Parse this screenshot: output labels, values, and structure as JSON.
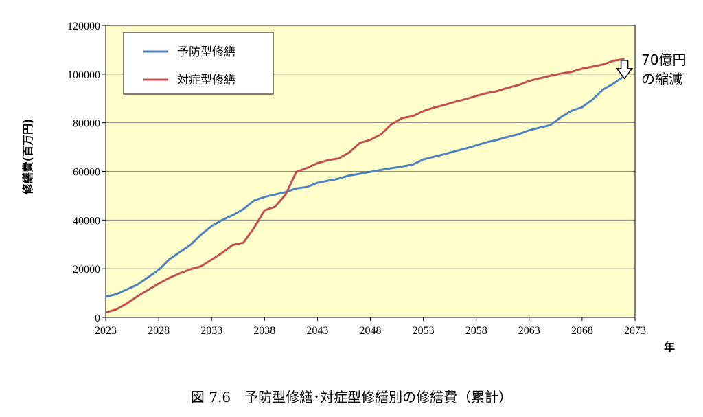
{
  "chart_data": {
    "type": "line",
    "caption": "図 7.6　予防型修繕･対症型修繕別の修繕費（累計）",
    "xlabel": "年",
    "ylabel": "修繕費(百万円)",
    "xlim": [
      2023,
      2073
    ],
    "ylim": [
      0,
      120000
    ],
    "x_ticks": [
      2023,
      2028,
      2033,
      2038,
      2043,
      2048,
      2053,
      2058,
      2063,
      2068,
      2073
    ],
    "y_ticks": [
      0,
      20000,
      40000,
      60000,
      80000,
      100000,
      120000
    ],
    "grid": true,
    "legend_position": "top-left",
    "plot_background": "#ffffcc",
    "annotation": {
      "line1": "70億円",
      "line2": "の縮減",
      "x": 2072
    },
    "series": [
      {
        "name": "予防型修繕",
        "color": "#4f81bd",
        "x": [
          2023,
          2024,
          2025,
          2026,
          2027,
          2028,
          2029,
          2030,
          2031,
          2032,
          2033,
          2034,
          2035,
          2036,
          2037,
          2038,
          2039,
          2040,
          2041,
          2042,
          2043,
          2044,
          2045,
          2046,
          2047,
          2048,
          2049,
          2050,
          2051,
          2052,
          2053,
          2054,
          2055,
          2056,
          2057,
          2058,
          2059,
          2060,
          2061,
          2062,
          2063,
          2064,
          2065,
          2066,
          2067,
          2068,
          2069,
          2070,
          2071,
          2072
        ],
        "values": [
          8500,
          9500,
          11500,
          13500,
          16500,
          19500,
          23800,
          26800,
          29800,
          34000,
          37500,
          40000,
          42000,
          44500,
          48000,
          49500,
          50500,
          51500,
          53000,
          53600,
          55300,
          56200,
          57000,
          58300,
          59000,
          59800,
          60600,
          61300,
          62000,
          62800,
          64900,
          66000,
          67100,
          68300,
          69400,
          70700,
          72000,
          73000,
          74200,
          75300,
          76900,
          78000,
          79000,
          82300,
          84900,
          86400,
          89600,
          93700,
          96200,
          99300
        ]
      },
      {
        "name": "対症型修繕",
        "color": "#c0504d",
        "x": [
          2023,
          2024,
          2025,
          2026,
          2027,
          2028,
          2029,
          2030,
          2031,
          2032,
          2033,
          2034,
          2035,
          2036,
          2037,
          2038,
          2039,
          2040,
          2041,
          2042,
          2043,
          2044,
          2045,
          2046,
          2047,
          2048,
          2049,
          2050,
          2051,
          2052,
          2053,
          2054,
          2055,
          2056,
          2057,
          2058,
          2059,
          2060,
          2061,
          2062,
          2063,
          2064,
          2065,
          2066,
          2067,
          2068,
          2069,
          2070,
          2071,
          2072
        ],
        "values": [
          2000,
          3300,
          5700,
          8700,
          11300,
          13900,
          16200,
          18100,
          19800,
          21000,
          23700,
          26500,
          29800,
          30700,
          36700,
          44000,
          45500,
          50500,
          59800,
          61400,
          63400,
          64600,
          65300,
          67800,
          71700,
          73000,
          75200,
          79400,
          81900,
          82700,
          84800,
          86200,
          87300,
          88600,
          89700,
          91000,
          92200,
          93000,
          94400,
          95500,
          97200,
          98300,
          99300,
          100200,
          100900,
          102200,
          103100,
          104000,
          105500,
          106200
        ]
      }
    ]
  }
}
